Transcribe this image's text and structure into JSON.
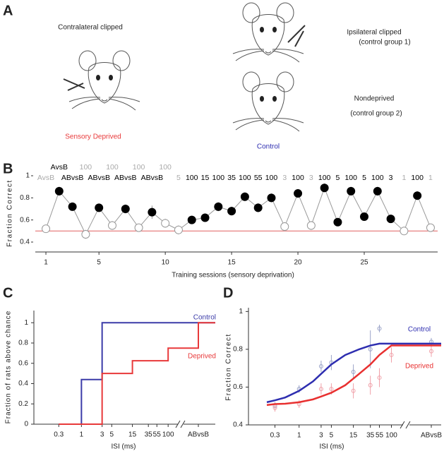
{
  "panel_labels": [
    "A",
    "B",
    "C",
    "D"
  ],
  "panel_a": {
    "contralateral": "Contralateral clipped",
    "deprived": "Sensory Deprived",
    "control": "Control",
    "ipsilateral": "Ipsilateral clipped",
    "group1": "(control group 1)",
    "nondeprived": "Nondeprived",
    "group2": "(control group 2)"
  },
  "chart_data": [
    {
      "type": "line",
      "x_label": "Training sessions (sensory deprivation)",
      "y_label": "Fraction Correct",
      "x": [
        1,
        2,
        3,
        4,
        5,
        6,
        7,
        8,
        9,
        10,
        11,
        12,
        13,
        14,
        15,
        16,
        17,
        18,
        19,
        20,
        21,
        22,
        23,
        24,
        25,
        26,
        27,
        28,
        29,
        30
      ],
      "values": [
        0.52,
        0.86,
        0.72,
        0.47,
        0.71,
        0.55,
        0.7,
        0.53,
        0.67,
        0.57,
        0.51,
        0.6,
        0.62,
        0.72,
        0.68,
        0.81,
        0.71,
        0.8,
        0.54,
        0.84,
        0.55,
        0.89,
        0.58,
        0.86,
        0.63,
        0.86,
        0.61,
        0.5,
        0.82,
        0.53
      ],
      "errors": [
        0.03,
        0.04,
        0.03,
        0.04,
        0.03,
        0.04,
        0.04,
        0.03,
        0.06,
        0.04,
        0.04,
        0.03,
        0.03,
        0.04,
        0.04,
        0.04,
        0.04,
        0.04,
        0.04,
        0.04,
        0.04,
        0.04,
        0.03,
        0.04,
        0.03,
        0.04,
        0.03,
        0.03,
        0.04,
        0.03
      ],
      "filled": [
        false,
        true,
        true,
        false,
        true,
        false,
        true,
        false,
        true,
        false,
        false,
        true,
        true,
        true,
        true,
        true,
        true,
        true,
        false,
        true,
        false,
        true,
        true,
        true,
        true,
        true,
        true,
        false,
        true,
        false
      ],
      "labels": [
        "AvsB",
        "AvsB",
        "ABvsB",
        "100",
        "ABvsB",
        "100",
        "ABvsB",
        "100",
        "ABvsB",
        "100",
        "5",
        "100",
        "15",
        "100",
        "35",
        "100",
        "55",
        "100",
        "3",
        "100",
        "3",
        "100",
        "5",
        "100",
        "5",
        "100",
        "3",
        "1",
        "100",
        "1"
      ],
      "chance_level": 0.5,
      "chance_color": "#e06060",
      "color": "#000000",
      "xlim": [
        0.2,
        30.8
      ],
      "xticks": [
        1,
        5,
        10,
        15,
        20,
        25
      ],
      "ylim": [
        0.32,
        1.0
      ],
      "yticks": [
        0.4,
        0.6,
        0.8,
        1
      ]
    },
    {
      "type": "step",
      "x_label": "ISI (ms)",
      "y_label": "Fraction of rats above chance",
      "xscale": "log",
      "xlim": [
        0.08,
        150
      ],
      "categories": [
        "0.3",
        "1",
        "3",
        "5",
        "15",
        "35",
        "55",
        "100",
        "ABvsB"
      ],
      "series": [
        {
          "name": "Control",
          "color": "#3b3ba8",
          "values": [
            0,
            0.44,
            1,
            1,
            1,
            1,
            1,
            1,
            1
          ]
        },
        {
          "name": "Deprived",
          "color": "#e8393a",
          "values": [
            0,
            0,
            0.5,
            0.5,
            0.625,
            0.625,
            0.625,
            0.75,
            1
          ]
        }
      ],
      "ylim": [
        0,
        1.12
      ],
      "yticks": [
        0,
        0.2,
        0.4,
        0.6,
        0.8,
        1
      ]
    },
    {
      "type": "scatter",
      "x_label": "ISI (ms)",
      "y_label": "Fraction Correct",
      "xscale": "log",
      "xlim": [
        0.08,
        150
      ],
      "categories": [
        "0.3",
        "1",
        "3",
        "5",
        "15",
        "35",
        "55",
        "100",
        "ABvsB"
      ],
      "series": [
        {
          "name": "Control",
          "color": "#2e2eb0",
          "point_color": "#9aa3c8",
          "values": [
            0.5,
            0.59,
            0.71,
            0.73,
            0.68,
            0.8,
            0.91,
            null,
            0.84
          ],
          "errors": [
            0.02,
            0.02,
            0.03,
            0.04,
            0.04,
            0.1,
            0.02,
            null,
            0.02
          ],
          "curve_x": [
            0.2,
            0.3,
            0.5,
            1,
            2,
            3,
            5,
            10,
            20,
            35,
            55,
            100
          ],
          "curve_values": [
            0.52,
            0.53,
            0.545,
            0.58,
            0.63,
            0.67,
            0.72,
            0.77,
            0.8,
            0.82,
            0.83,
            0.83
          ]
        },
        {
          "name": "Deprived",
          "color": "#e83030",
          "point_color": "#f0a0a8",
          "values": [
            0.49,
            0.51,
            0.59,
            0.59,
            0.58,
            0.61,
            0.65,
            0.77,
            0.79
          ],
          "errors": [
            0.02,
            0.02,
            0.03,
            0.03,
            0.04,
            0.05,
            0.05,
            0.04,
            0.03
          ],
          "curve_x": [
            0.2,
            0.3,
            0.5,
            1,
            2,
            3,
            5,
            10,
            20,
            35,
            55,
            100
          ],
          "curve_values": [
            0.505,
            0.51,
            0.512,
            0.52,
            0.535,
            0.55,
            0.57,
            0.61,
            0.67,
            0.72,
            0.77,
            0.82
          ]
        }
      ],
      "ylim": [
        0.4,
        1.02
      ],
      "yticks": [
        0.4,
        0.6,
        0.8,
        1
      ]
    }
  ]
}
